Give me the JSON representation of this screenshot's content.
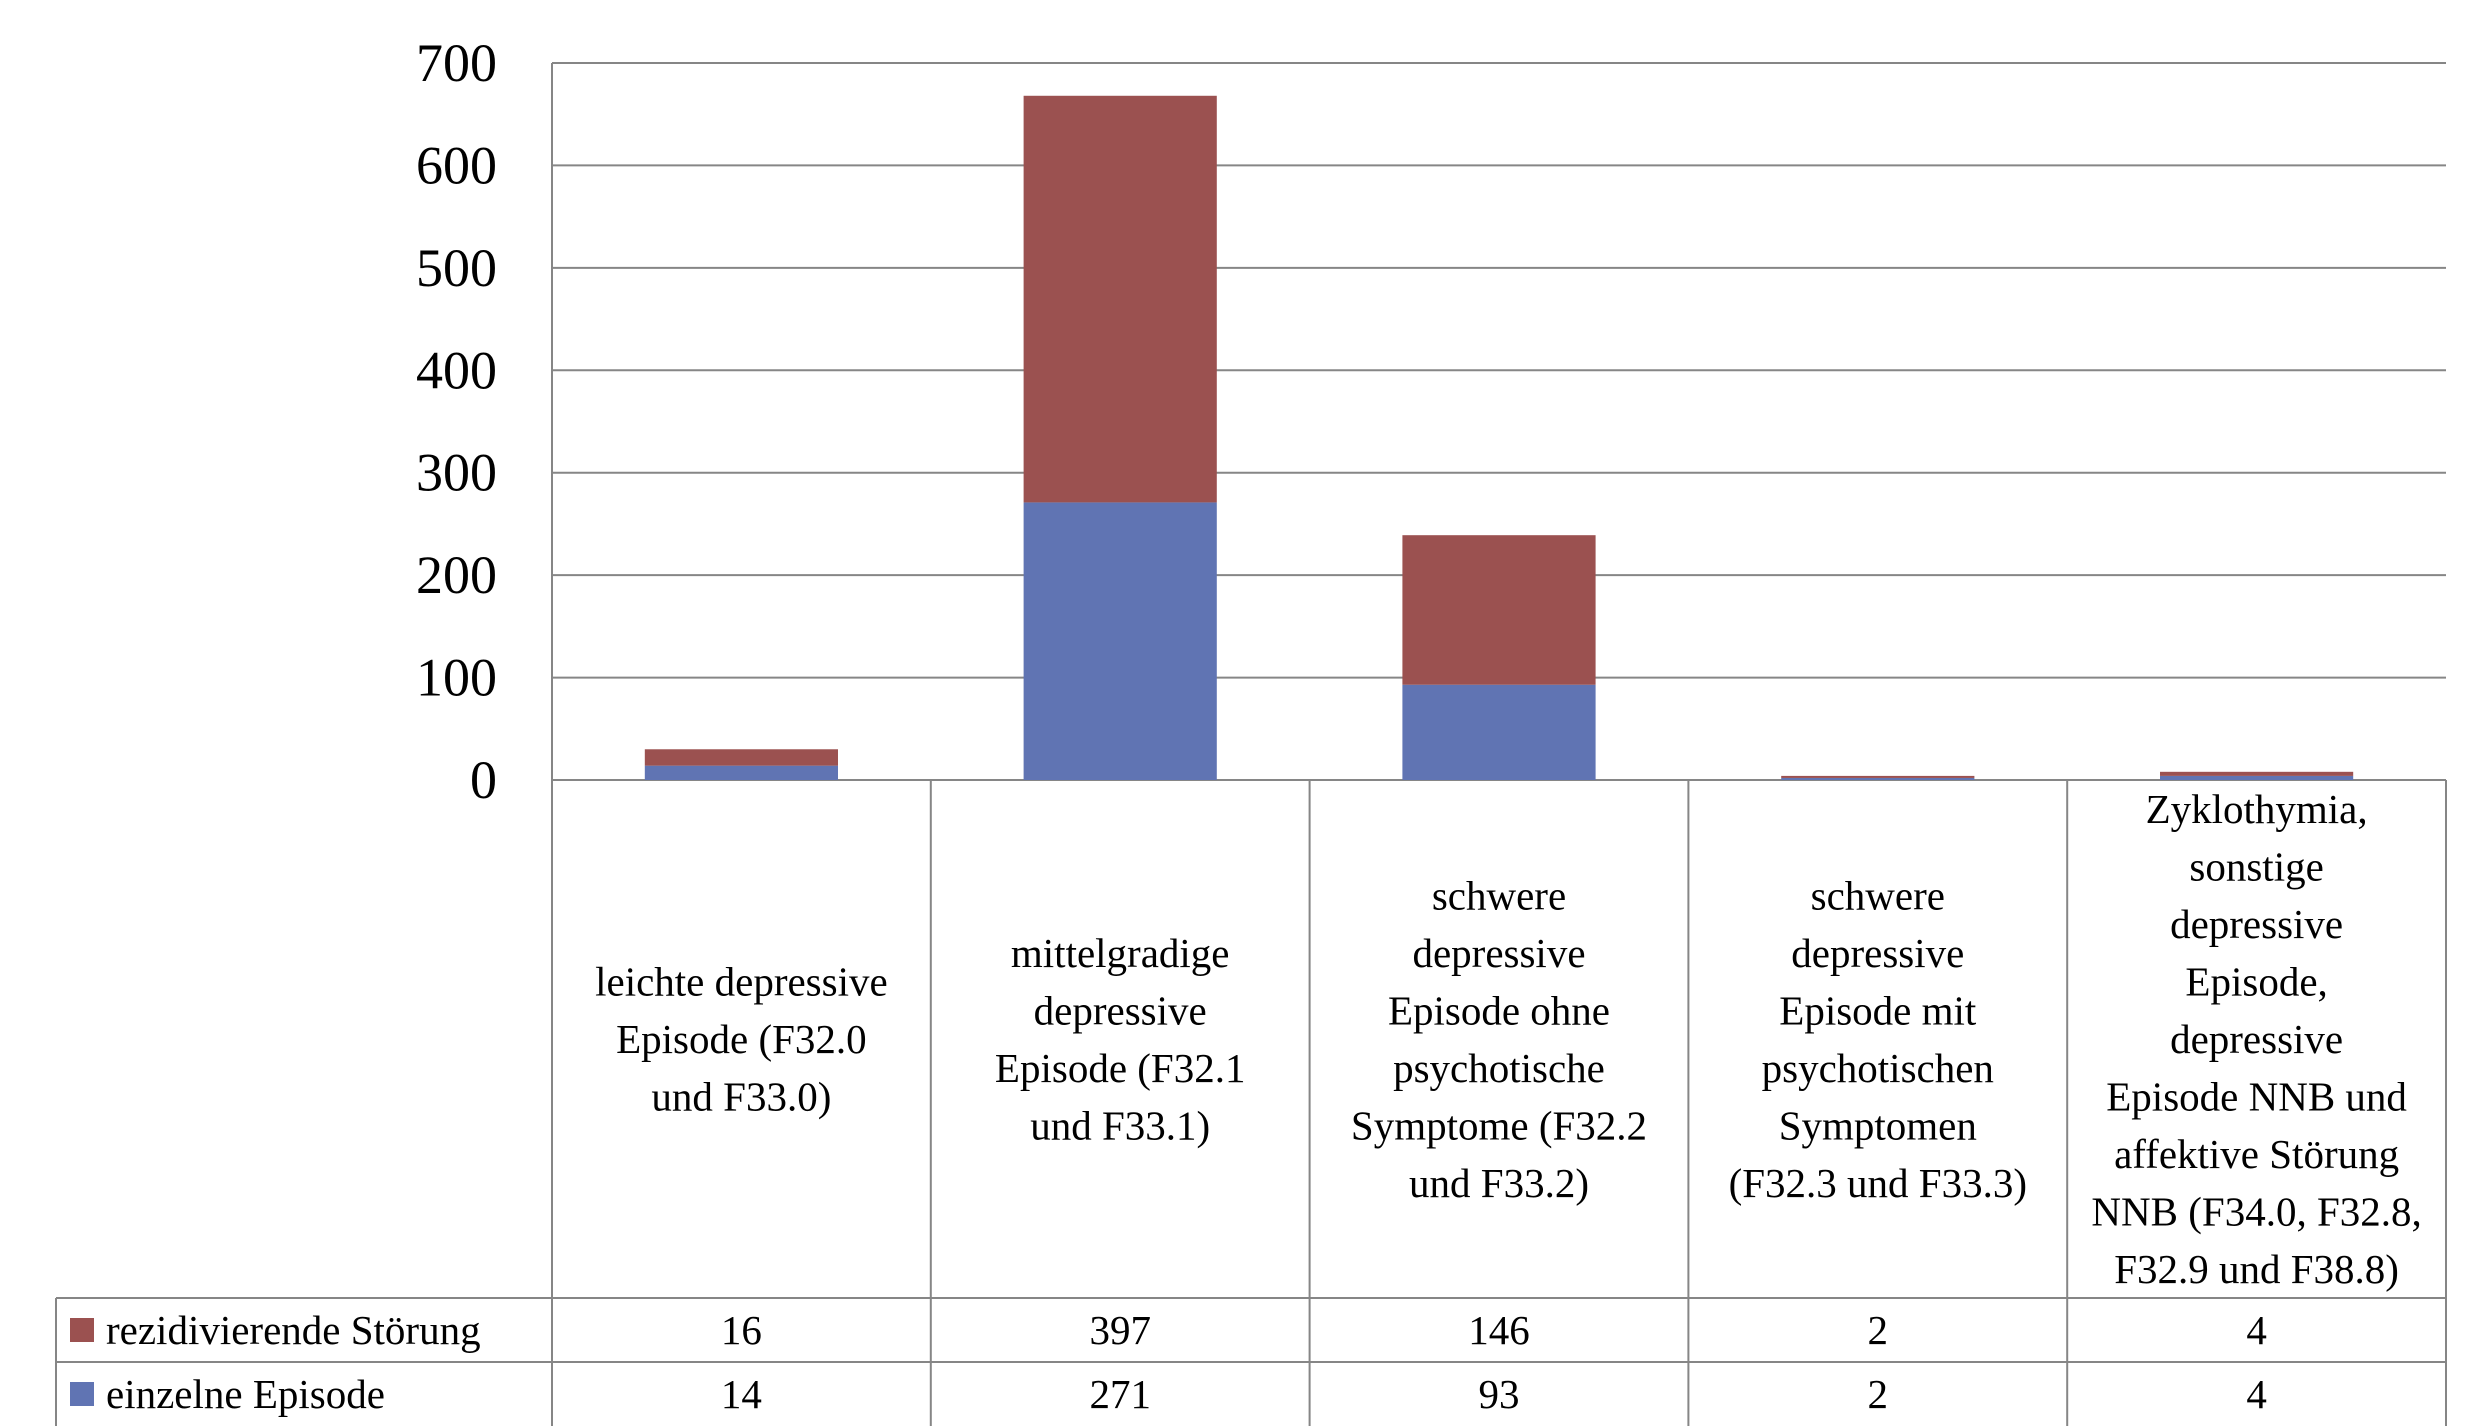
{
  "chart_data": {
    "type": "bar",
    "stacked": true,
    "title": "",
    "xlabel": "",
    "ylabel": "",
    "ylim": [
      0,
      700
    ],
    "yticks": [
      0,
      100,
      200,
      300,
      400,
      500,
      600,
      700
    ],
    "grid": true,
    "legend": "data-table",
    "categories": [
      [
        "leichte depressive",
        "Episode (F32.0",
        "und F33.0)"
      ],
      [
        "mittelgradige",
        "depressive",
        "Episode (F32.1",
        "und F33.1)"
      ],
      [
        "schwere",
        "depressive",
        "Episode ohne",
        "psychotische",
        "Symptome (F32.2",
        "und F33.2)"
      ],
      [
        "schwere",
        "depressive",
        "Episode mit",
        "psychotischen",
        "Symptomen",
        "(F32.3 und F33.3)"
      ],
      [
        "Zyklothymia,",
        "sonstige",
        "depressive",
        "Episode,",
        "depressive",
        "Episode NNB und",
        "affektive Störung",
        "NNB (F34.0, F32.8,",
        "F32.9 und F38.8)"
      ]
    ],
    "series": [
      {
        "name": "einzelne Episode",
        "color": "#6074B3",
        "values": [
          14,
          271,
          93,
          2,
          4
        ]
      },
      {
        "name": "rezidivierende Störung",
        "color": "#9B5150",
        "values": [
          16,
          397,
          146,
          2,
          4
        ]
      }
    ],
    "table_rows": [
      "rezidivierende Störung",
      "einzelne Episode"
    ]
  }
}
